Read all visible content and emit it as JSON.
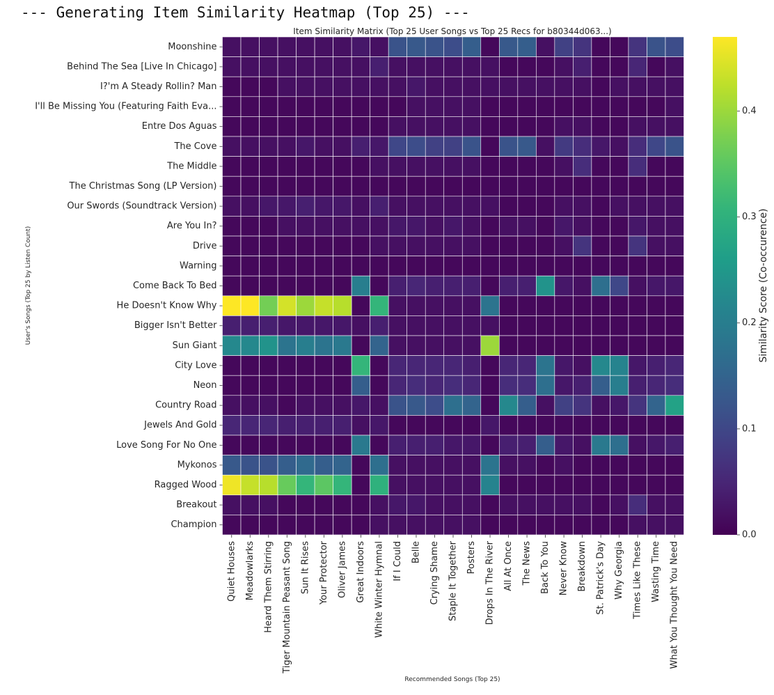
{
  "header": {
    "console_title": "--- Generating Item Similarity Heatmap (Top 25) ---"
  },
  "chart_data": {
    "type": "heatmap",
    "title": "Item Similarity Matrix (Top 25 User Songs vs Top 25 Recs for b80344d063...)",
    "xlabel": "Recommended Songs (Top 25)",
    "ylabel": "User's Songs (Top 25 by Listen Count)",
    "colorbar_label": "Similarity Score (Co-occurence)",
    "colormap": "viridis",
    "vmin": 0.0,
    "vmax": 0.47,
    "colorbar_ticks": [
      "0.0",
      "0.1",
      "0.2",
      "0.3",
      "0.4"
    ],
    "rows": [
      "Moonshine",
      "Behind The Sea [Live In Chicago]",
      "I?'m A Steady Rollin? Man",
      "I'll Be Missing You (Featuring Faith Eva...",
      "Entre Dos Aguas",
      "The Cove",
      "The Middle",
      "The Christmas Song  (LP Version)",
      "Our Swords (Soundtrack Version)",
      "Are You In?",
      "Drive",
      "Warning",
      "Come Back To Bed",
      "He Doesn't Know Why",
      "Bigger Isn't Better",
      "Sun Giant",
      "City Love",
      "Neon",
      "Country Road",
      "Jewels And Gold",
      "Love Song For No One",
      "Mykonos",
      "Ragged Wood",
      "Breakout",
      "Champion"
    ],
    "columns": [
      "Quiet Houses",
      "Meadowlarks",
      "Heard Them Stirring",
      "Tiger Mountain Peasant Song",
      "Sun It Rises",
      "Your Protector",
      "Oliver James",
      "Great Indoors",
      "White Winter Hymnal",
      "If I Could",
      "Belle",
      "Crying Shame",
      "Staple It Together",
      "Posters",
      "Drops In The River",
      "All At Once",
      "The News",
      "Back To You",
      "Never Know",
      "Breakdown",
      "St. Patrick's Day",
      "Why Georgia",
      "Times Like These",
      "Wasting Time",
      "What You Thought You Need"
    ],
    "values": [
      [
        0.02,
        0.02,
        0.02,
        0.02,
        0.02,
        0.02,
        0.02,
        0.03,
        0.02,
        0.12,
        0.13,
        0.12,
        0.11,
        0.14,
        0.01,
        0.13,
        0.14,
        0.02,
        0.09,
        0.07,
        0.01,
        0.01,
        0.07,
        0.12,
        0.11
      ],
      [
        0.02,
        0.02,
        0.02,
        0.02,
        0.02,
        0.02,
        0.02,
        0.02,
        0.04,
        0.02,
        0.02,
        0.02,
        0.02,
        0.02,
        0.02,
        0.01,
        0.01,
        0.01,
        0.02,
        0.04,
        0.01,
        0.01,
        0.05,
        0.01,
        0.02
      ],
      [
        0.01,
        0.01,
        0.01,
        0.02,
        0.02,
        0.02,
        0.02,
        0.02,
        0.02,
        0.02,
        0.03,
        0.02,
        0.02,
        0.02,
        0.02,
        0.02,
        0.02,
        0.02,
        0.02,
        0.02,
        0.01,
        0.02,
        0.02,
        0.02,
        0.02
      ],
      [
        0.01,
        0.01,
        0.01,
        0.01,
        0.01,
        0.01,
        0.01,
        0.01,
        0.01,
        0.01,
        0.02,
        0.02,
        0.02,
        0.02,
        0.01,
        0.01,
        0.01,
        0.01,
        0.01,
        0.01,
        0.01,
        0.01,
        0.01,
        0.01,
        0.02
      ],
      [
        0.01,
        0.01,
        0.01,
        0.01,
        0.01,
        0.01,
        0.01,
        0.01,
        0.01,
        0.02,
        0.02,
        0.02,
        0.02,
        0.02,
        0.01,
        0.01,
        0.01,
        0.01,
        0.02,
        0.02,
        0.01,
        0.01,
        0.02,
        0.02,
        0.02
      ],
      [
        0.02,
        0.02,
        0.02,
        0.02,
        0.03,
        0.02,
        0.02,
        0.04,
        0.03,
        0.1,
        0.11,
        0.09,
        0.09,
        0.12,
        0.01,
        0.12,
        0.13,
        0.02,
        0.08,
        0.06,
        0.03,
        0.02,
        0.06,
        0.1,
        0.12
      ],
      [
        0.01,
        0.01,
        0.01,
        0.01,
        0.01,
        0.01,
        0.01,
        0.01,
        0.02,
        0.02,
        0.02,
        0.02,
        0.02,
        0.02,
        0.01,
        0.01,
        0.01,
        0.01,
        0.02,
        0.06,
        0.01,
        0.01,
        0.06,
        0.01,
        0.01
      ],
      [
        0.01,
        0.01,
        0.01,
        0.01,
        0.01,
        0.01,
        0.01,
        0.01,
        0.01,
        0.01,
        0.01,
        0.01,
        0.01,
        0.01,
        0.01,
        0.01,
        0.01,
        0.01,
        0.01,
        0.01,
        0.01,
        0.01,
        0.01,
        0.01,
        0.01
      ],
      [
        0.02,
        0.02,
        0.03,
        0.03,
        0.04,
        0.03,
        0.03,
        0.02,
        0.04,
        0.02,
        0.02,
        0.02,
        0.02,
        0.02,
        0.02,
        0.01,
        0.01,
        0.01,
        0.02,
        0.02,
        0.01,
        0.02,
        0.02,
        0.02,
        0.02
      ],
      [
        0.01,
        0.01,
        0.01,
        0.02,
        0.02,
        0.02,
        0.02,
        0.02,
        0.02,
        0.03,
        0.03,
        0.02,
        0.03,
        0.02,
        0.01,
        0.02,
        0.02,
        0.01,
        0.03,
        0.02,
        0.01,
        0.01,
        0.03,
        0.02,
        0.02
      ],
      [
        0.01,
        0.01,
        0.01,
        0.01,
        0.01,
        0.01,
        0.01,
        0.01,
        0.02,
        0.02,
        0.02,
        0.02,
        0.02,
        0.02,
        0.01,
        0.01,
        0.01,
        0.01,
        0.02,
        0.07,
        0.01,
        0.01,
        0.07,
        0.02,
        0.02
      ],
      [
        0.01,
        0.01,
        0.01,
        0.01,
        0.01,
        0.01,
        0.01,
        0.01,
        0.01,
        0.01,
        0.01,
        0.01,
        0.01,
        0.01,
        0.01,
        0.01,
        0.01,
        0.01,
        0.01,
        0.01,
        0.01,
        0.01,
        0.01,
        0.01,
        0.01
      ],
      [
        0.01,
        0.01,
        0.01,
        0.01,
        0.01,
        0.01,
        0.01,
        0.2,
        0.01,
        0.04,
        0.05,
        0.04,
        0.04,
        0.04,
        0.01,
        0.04,
        0.04,
        0.24,
        0.03,
        0.02,
        0.17,
        0.1,
        0.02,
        0.03,
        0.03
      ],
      [
        0.47,
        0.47,
        0.37,
        0.44,
        0.4,
        0.43,
        0.42,
        0.01,
        0.31,
        0.02,
        0.02,
        0.02,
        0.02,
        0.02,
        0.18,
        0.01,
        0.01,
        0.01,
        0.01,
        0.01,
        0.01,
        0.01,
        0.01,
        0.01,
        0.01
      ],
      [
        0.04,
        0.04,
        0.04,
        0.03,
        0.03,
        0.03,
        0.03,
        0.02,
        0.04,
        0.02,
        0.02,
        0.02,
        0.02,
        0.02,
        0.02,
        0.01,
        0.01,
        0.01,
        0.01,
        0.01,
        0.01,
        0.01,
        0.01,
        0.01,
        0.01
      ],
      [
        0.22,
        0.22,
        0.24,
        0.18,
        0.2,
        0.18,
        0.19,
        0.01,
        0.15,
        0.02,
        0.02,
        0.02,
        0.02,
        0.02,
        0.4,
        0.01,
        0.01,
        0.01,
        0.01,
        0.01,
        0.01,
        0.01,
        0.01,
        0.01,
        0.01
      ],
      [
        0.01,
        0.01,
        0.01,
        0.01,
        0.01,
        0.01,
        0.01,
        0.31,
        0.01,
        0.05,
        0.05,
        0.05,
        0.05,
        0.04,
        0.01,
        0.05,
        0.05,
        0.18,
        0.03,
        0.02,
        0.22,
        0.21,
        0.03,
        0.04,
        0.05
      ],
      [
        0.01,
        0.01,
        0.01,
        0.01,
        0.01,
        0.01,
        0.01,
        0.14,
        0.01,
        0.05,
        0.06,
        0.05,
        0.06,
        0.05,
        0.01,
        0.06,
        0.06,
        0.17,
        0.03,
        0.04,
        0.14,
        0.2,
        0.04,
        0.05,
        0.06
      ],
      [
        0.02,
        0.02,
        0.02,
        0.01,
        0.02,
        0.02,
        0.02,
        0.03,
        0.02,
        0.12,
        0.13,
        0.11,
        0.17,
        0.15,
        0.01,
        0.22,
        0.14,
        0.02,
        0.09,
        0.07,
        0.02,
        0.03,
        0.07,
        0.15,
        0.27
      ],
      [
        0.05,
        0.05,
        0.05,
        0.04,
        0.04,
        0.04,
        0.04,
        0.02,
        0.03,
        0.01,
        0.01,
        0.01,
        0.01,
        0.01,
        0.03,
        0.01,
        0.01,
        0.01,
        0.01,
        0.01,
        0.01,
        0.01,
        0.01,
        0.01,
        0.01
      ],
      [
        0.01,
        0.01,
        0.01,
        0.01,
        0.01,
        0.01,
        0.01,
        0.19,
        0.01,
        0.04,
        0.04,
        0.04,
        0.03,
        0.03,
        0.01,
        0.04,
        0.04,
        0.14,
        0.03,
        0.02,
        0.19,
        0.17,
        0.02,
        0.03,
        0.04
      ],
      [
        0.13,
        0.12,
        0.12,
        0.14,
        0.16,
        0.14,
        0.15,
        0.01,
        0.17,
        0.02,
        0.02,
        0.02,
        0.02,
        0.02,
        0.18,
        0.02,
        0.02,
        0.01,
        0.02,
        0.01,
        0.01,
        0.01,
        0.01,
        0.01,
        0.01
      ],
      [
        0.46,
        0.43,
        0.42,
        0.36,
        0.31,
        0.35,
        0.31,
        0.01,
        0.3,
        0.02,
        0.02,
        0.02,
        0.02,
        0.02,
        0.21,
        0.01,
        0.01,
        0.01,
        0.01,
        0.01,
        0.01,
        0.01,
        0.01,
        0.01,
        0.01
      ],
      [
        0.02,
        0.02,
        0.02,
        0.01,
        0.01,
        0.01,
        0.01,
        0.01,
        0.02,
        0.03,
        0.03,
        0.02,
        0.02,
        0.02,
        0.01,
        0.02,
        0.02,
        0.02,
        0.02,
        0.02,
        0.01,
        0.02,
        0.06,
        0.02,
        0.02
      ],
      [
        0.01,
        0.01,
        0.01,
        0.01,
        0.01,
        0.01,
        0.01,
        0.01,
        0.02,
        0.02,
        0.02,
        0.02,
        0.02,
        0.02,
        0.01,
        0.01,
        0.01,
        0.01,
        0.01,
        0.01,
        0.01,
        0.01,
        0.02,
        0.02,
        0.02
      ]
    ]
  }
}
